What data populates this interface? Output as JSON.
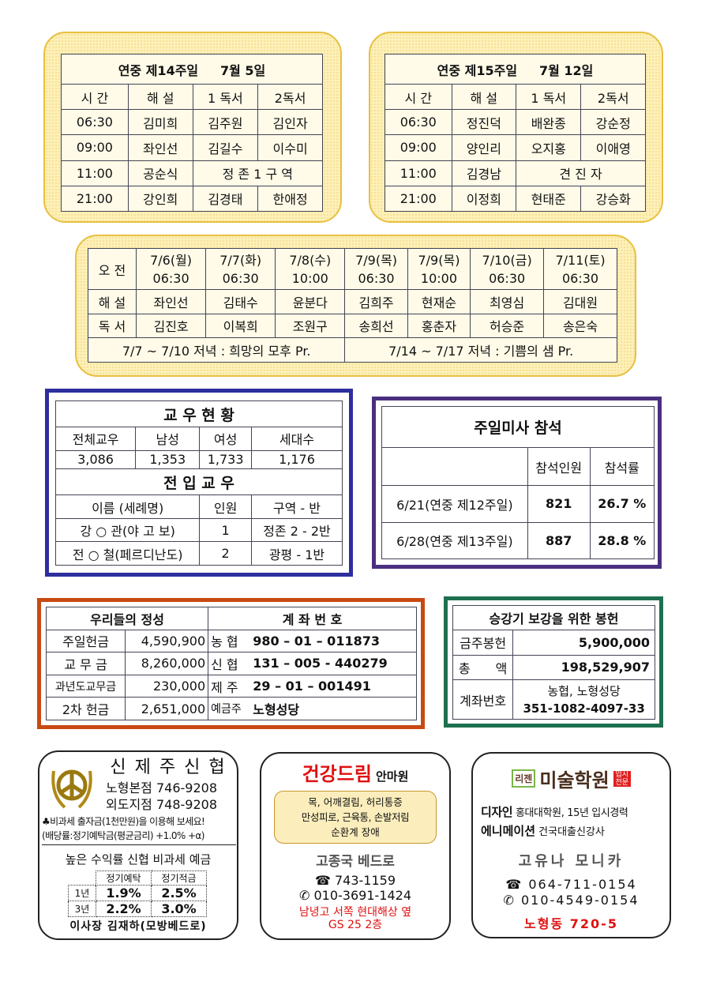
{
  "week14": {
    "title": "연중 제14주일",
    "date": "7월 5일",
    "headers": [
      "시 간",
      "해 설",
      "1 독서",
      "2독서"
    ],
    "rows": [
      [
        "06:30",
        "김미희",
        "김주원",
        "김인자"
      ],
      [
        "09:00",
        "좌인선",
        "김길수",
        "이수미"
      ],
      [
        "11:00",
        "공순식",
        "정 존 1 구 역"
      ],
      [
        "21:00",
        "강인희",
        "김경태",
        "한애정"
      ]
    ]
  },
  "week15": {
    "title": "연중 제15주일",
    "date": "7월 12일",
    "headers": [
      "시 간",
      "해 설",
      "1 독서",
      "2독서"
    ],
    "rows": [
      [
        "06:30",
        "정진덕",
        "배완종",
        "강순정"
      ],
      [
        "09:00",
        "양인리",
        "오지홍",
        "이애영"
      ],
      [
        "11:00",
        "김경남",
        "견 진 자"
      ],
      [
        "21:00",
        "이정희",
        "현태준",
        "강승화"
      ]
    ]
  },
  "weekday": {
    "label_am": "오 전",
    "label_commentary": "해 설",
    "label_reading": "독 서",
    "days": [
      {
        "date": "7/6(월)",
        "time": "06:30",
        "commentary": "좌인선",
        "reading": "김진호"
      },
      {
        "date": "7/7(화)",
        "time": "06:30",
        "commentary": "김태수",
        "reading": "이복희"
      },
      {
        "date": "7/8(수)",
        "time": "10:00",
        "commentary": "윤분다",
        "reading": "조원구"
      },
      {
        "date": "7/9(목)",
        "time": "06:30",
        "commentary": "김희주",
        "reading": "송희선"
      },
      {
        "date": "7/9(목)",
        "time": "10:00",
        "commentary": "현재순",
        "reading": "홍춘자"
      },
      {
        "date": "7/10(금)",
        "time": "06:30",
        "commentary": "최영심",
        "reading": "허승준"
      },
      {
        "date": "7/11(토)",
        "time": "06:30",
        "commentary": "김대원",
        "reading": "송은숙"
      }
    ],
    "notes": [
      "7/7 ~ 7/10 저녁 : 희망의 모후 Pr.",
      "7/14 ~ 7/17 저녁 : 기쁨의 샘 Pr."
    ]
  },
  "parish": {
    "title": "교 우 현 황",
    "headers": [
      "전체교우",
      "남성",
      "여성",
      "세대수"
    ],
    "values": [
      "3,086",
      "1,353",
      "1,733",
      "1,176"
    ],
    "new_title": "전 입 교 우",
    "new_headers": [
      "이름 (세례명)",
      "인원",
      "구역 - 반"
    ],
    "new_rows": [
      [
        "강 ○ 관(야 고 보)",
        "1",
        "정존 2 - 2반"
      ],
      [
        "전 ○ 철(페르디난도)",
        "2",
        "광평 - 1반"
      ]
    ]
  },
  "attendance": {
    "title": "주일미사 참석",
    "headers": [
      "참석인원",
      "참석률"
    ],
    "rows": [
      [
        "6/21(연중 제12주일)",
        "821",
        "26.7 %"
      ],
      [
        "6/28(연중 제13주일)",
        "887",
        "28.8 %"
      ]
    ]
  },
  "offering": {
    "title": "우리들의 정성",
    "account_title": "계 좌 번 호",
    "rows": [
      [
        "주일헌금",
        "4,590,900",
        "농 협",
        "980 – 01 – 011873"
      ],
      [
        "교 무 금",
        "8,260,000",
        "신 협",
        "131 – 005 - 440279"
      ],
      [
        "과년도교무금",
        "230,000",
        "제 주",
        "29 – 01 – 001491"
      ],
      [
        "2차 헌금",
        "2,651,000",
        "예금주",
        "노형성당"
      ]
    ]
  },
  "fund": {
    "title": "승강기 보강을 위한 봉헌",
    "rows": [
      [
        "금주봉헌",
        "5,900,000"
      ],
      [
        "총　　액",
        "198,529,907"
      ]
    ],
    "account_label": "계좌번호",
    "account_bank": "농협, 노형성당",
    "account_no": "351-1082-4097-33"
  },
  "ad1": {
    "name": "신 제 주 신 협",
    "branch1": "노형본점 746-9208",
    "branch2": "외도지점 748-9208",
    "promo": "♣비과세 출자금(1천만원)을 이용해 보세요!",
    "dividend": "(배당률:정기예탁금(평균금리) +1.0% +α)",
    "headline": "높은 수익률 신협 비과세 예금",
    "cols": [
      "정기예탁",
      "정기적금"
    ],
    "rows": [
      [
        "1년",
        "1.9%",
        "2.5%"
      ],
      [
        "3년",
        "2.2%",
        "3.0%"
      ]
    ],
    "chair": "이사장 김재하(모방베드로)"
  },
  "ad2": {
    "brand": "건강드림",
    "suffix": "안마원",
    "services": [
      "목, 어깨결림, 허리통증",
      "만성피로, 근육통, 손발저림",
      "순환계 장애"
    ],
    "owner": "고종국 베드로",
    "tel": "☎ 743-1159",
    "mobile": "✆ 010-3691-1424",
    "addr1": "남녕고 서쪽 현대해상 옆",
    "addr2": "GS 25 2층"
  },
  "ad3": {
    "logo": "리젠",
    "brand": "미술학원",
    "badge": "입시전문",
    "line1_b": "디자인",
    "line1": "홍대대학원, 15년 입시경력",
    "line2_b": "에니메이션",
    "line2": "건국대출신강사",
    "owner": "고유나 모니카",
    "tel": "☎ 064-711-0154",
    "mobile": "✆ 010-4549-0154",
    "addr": "노형동 720-5"
  },
  "colors": {
    "cream": "#fdf0b8",
    "blue_frame": "#2e2e9e",
    "purple_frame": "#4a2f80",
    "orange_frame": "#c84a12",
    "green_frame": "#1e7050",
    "red": "#e01010"
  }
}
